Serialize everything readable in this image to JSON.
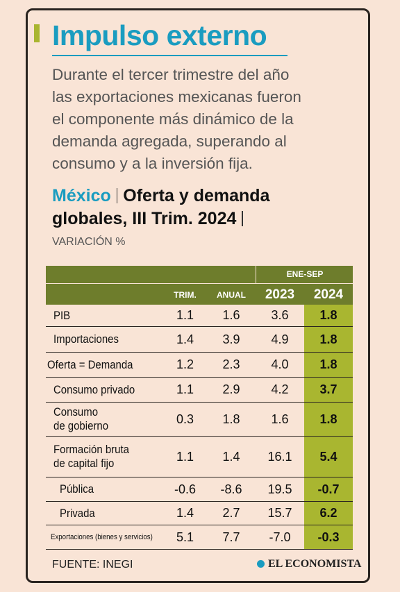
{
  "header": {
    "title": "Impulso externo",
    "intro": [
      "Durante el tercer trimestre del año",
      "las exportaciones mexicanas fueron",
      "el componente más dinámico de la",
      "demanda agregada, superando al",
      "consumo y a la inversión fija."
    ]
  },
  "subtitle": {
    "country": "México",
    "text": [
      "Oferta y demanda",
      "globales, III Trim. 2024"
    ],
    "unit": "VARIACIÓN %"
  },
  "table": {
    "group_header": "ENE-SEP",
    "columns": [
      "TRIM.",
      "ANUAL",
      "2023",
      "2024"
    ],
    "rows": [
      {
        "label": [
          "PIB"
        ],
        "values": [
          "1.1",
          "1.6",
          "3.6",
          "1.8"
        ]
      },
      {
        "label": [
          "Importaciones"
        ],
        "values": [
          "1.4",
          "3.9",
          "4.9",
          "1.8"
        ]
      },
      {
        "label": [
          "Oferta = Demanda"
        ],
        "values": [
          "1.2",
          "2.3",
          "4.0",
          "1.8"
        ]
      },
      {
        "label": [
          "Consumo privado"
        ],
        "values": [
          "1.1",
          "2.9",
          "4.2",
          "3.7"
        ]
      },
      {
        "label": [
          "Consumo",
          "de gobierno"
        ],
        "values": [
          "0.3",
          "1.8",
          "1.6",
          "1.8"
        ]
      },
      {
        "label": [
          "Formación bruta",
          "de capital fijo"
        ],
        "values": [
          "1.1",
          "1.4",
          "16.1",
          "5.4"
        ]
      },
      {
        "label": [
          "Pública"
        ],
        "values": [
          "-0.6",
          "-8.6",
          "19.5",
          "-0.7"
        ]
      },
      {
        "label": [
          "Privada"
        ],
        "values": [
          "1.4",
          "2.7",
          "15.7",
          "6.2"
        ]
      },
      {
        "label": [
          "Exportaciones (bienes y servicios)"
        ],
        "values": [
          "5.1",
          "7.7",
          "-7.0",
          "-0.3"
        ]
      }
    ]
  },
  "footer": {
    "source": "FUENTE: INEGI",
    "logo": "EL ECONOMISTA"
  }
}
